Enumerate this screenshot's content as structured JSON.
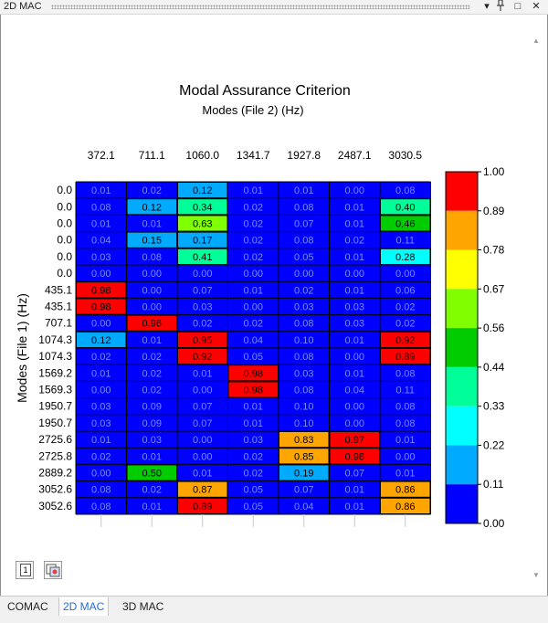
{
  "window": {
    "title": "2D MAC"
  },
  "titlebar": {
    "dropdown_glyph": "▾",
    "pin_glyph": "📌",
    "restore_glyph": "□",
    "close_glyph": "✕"
  },
  "toolbar": {
    "one_label": "1"
  },
  "tabs": [
    {
      "label": "COMAC",
      "active": false
    },
    {
      "label": "2D MAC",
      "active": true
    },
    {
      "label": "3D MAC",
      "active": false
    }
  ],
  "chart_data": {
    "type": "heatmap",
    "title": "Modal Assurance Criterion",
    "subtitle": "Modes (File 2) (Hz)",
    "ylabel": "Modes (File 1) (Hz)",
    "x": [
      "372.1",
      "711.1",
      "1060.0",
      "1341.7",
      "1927.8",
      "2487.1",
      "3030.5"
    ],
    "y": [
      "0.0",
      "0.0",
      "0.0",
      "0.0",
      "0.0",
      "0.0",
      "435.1",
      "435.1",
      "707.1",
      "1074.3",
      "1074.3",
      "1569.2",
      "1569.3",
      "1950.7",
      "1950.7",
      "2725.6",
      "2725.8",
      "2889.2",
      "3052.6",
      "3052.6"
    ],
    "values": [
      [
        0.01,
        0.02,
        0.12,
        0.01,
        0.01,
        0.0,
        0.08
      ],
      [
        0.08,
        0.12,
        0.34,
        0.02,
        0.08,
        0.01,
        0.4
      ],
      [
        0.01,
        0.01,
        0.63,
        0.02,
        0.07,
        0.01,
        0.46
      ],
      [
        0.04,
        0.15,
        0.17,
        0.02,
        0.08,
        0.02,
        0.11
      ],
      [
        0.03,
        0.08,
        0.41,
        0.02,
        0.05,
        0.01,
        0.28
      ],
      [
        0.0,
        0.0,
        0.0,
        0.0,
        0.0,
        0.0,
        0.0
      ],
      [
        0.98,
        0.0,
        0.07,
        0.01,
        0.02,
        0.01,
        0.06
      ],
      [
        0.98,
        0.0,
        0.03,
        0.0,
        0.03,
        0.03,
        0.02
      ],
      [
        0.0,
        0.96,
        0.02,
        0.02,
        0.08,
        0.03,
        0.02
      ],
      [
        0.12,
        0.01,
        0.95,
        0.04,
        0.1,
        0.01,
        0.92
      ],
      [
        0.02,
        0.02,
        0.92,
        0.05,
        0.08,
        0.0,
        0.89
      ],
      [
        0.01,
        0.02,
        0.01,
        0.98,
        0.03,
        0.01,
        0.08
      ],
      [
        0.0,
        0.02,
        0.0,
        0.98,
        0.08,
        0.04,
        0.11
      ],
      [
        0.03,
        0.09,
        0.07,
        0.01,
        0.1,
        0.0,
        0.08
      ],
      [
        0.03,
        0.09,
        0.07,
        0.01,
        0.1,
        0.0,
        0.08
      ],
      [
        0.01,
        0.03,
        0.0,
        0.03,
        0.83,
        0.97,
        0.01
      ],
      [
        0.02,
        0.01,
        0.0,
        0.02,
        0.85,
        0.98,
        0.0
      ],
      [
        0.0,
        0.5,
        0.01,
        0.02,
        0.19,
        0.07,
        0.01
      ],
      [
        0.08,
        0.02,
        0.87,
        0.05,
        0.07,
        0.01,
        0.86
      ],
      [
        0.08,
        0.01,
        0.89,
        0.05,
        0.04,
        0.01,
        0.86
      ]
    ],
    "scale": {
      "ticks": [
        "1.00",
        "0.89",
        "0.78",
        "0.67",
        "0.56",
        "0.44",
        "0.33",
        "0.22",
        "0.11",
        "0.00"
      ],
      "colors": [
        "#ff0000",
        "#ffa500",
        "#ffff00",
        "#80ff00",
        "#00cc00",
        "#00ff99",
        "#00ffff",
        "#00aaff",
        "#0000ff"
      ]
    }
  }
}
